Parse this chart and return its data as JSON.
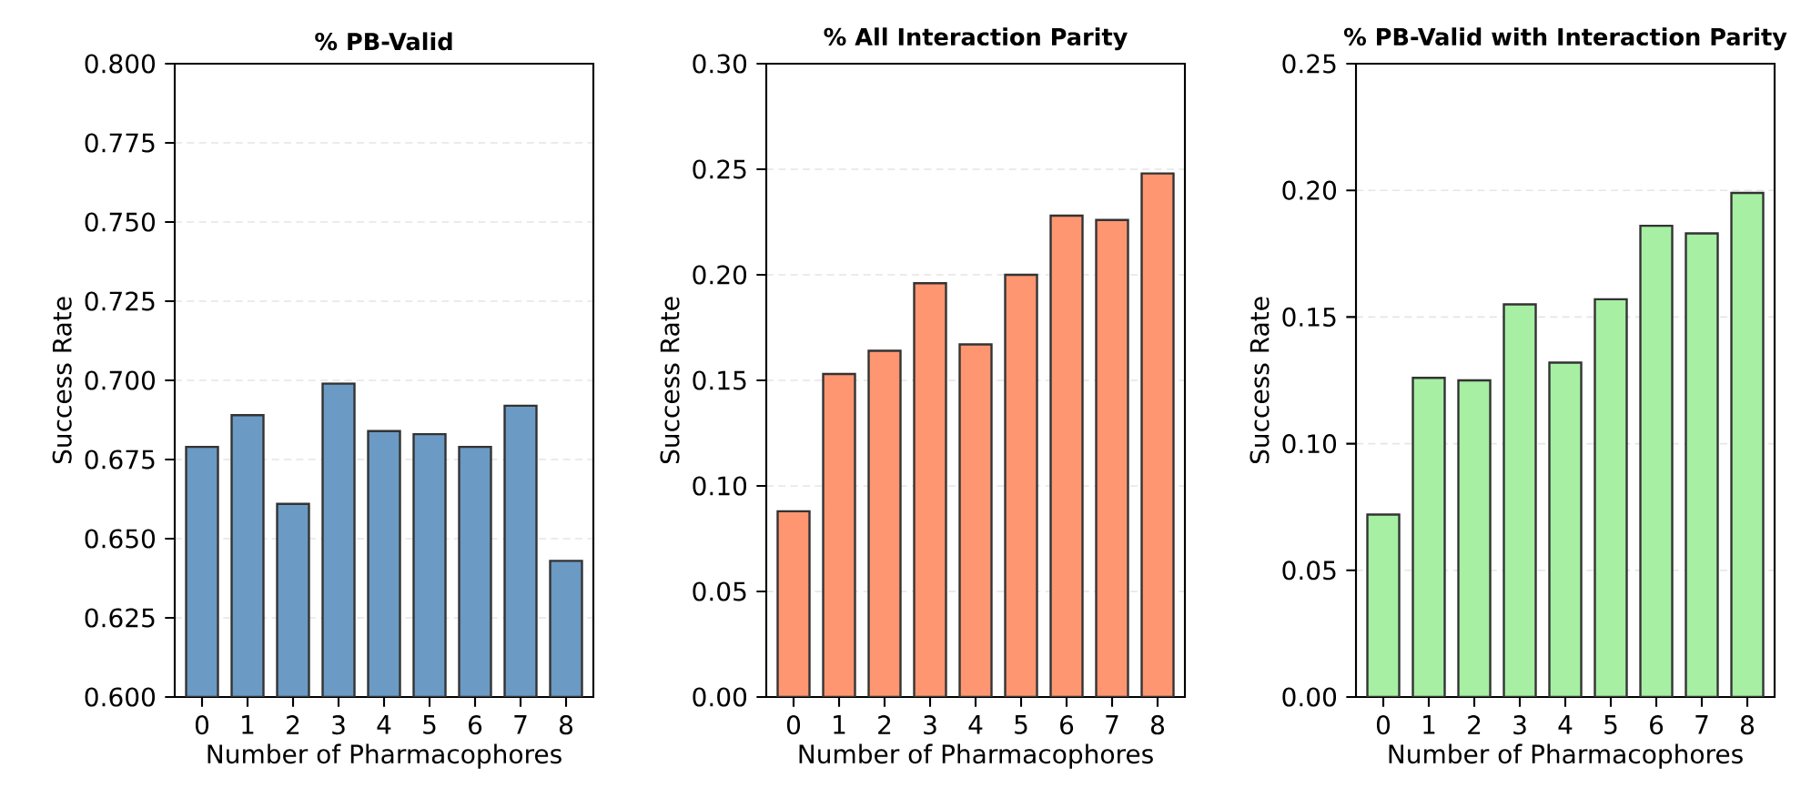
{
  "chart_data": [
    {
      "type": "bar",
      "title": "% PB-Valid",
      "xlabel": "Number of Pharmacophores",
      "ylabel": "Success Rate",
      "categories": [
        "0",
        "1",
        "2",
        "3",
        "4",
        "5",
        "6",
        "7",
        "8"
      ],
      "values": [
        0.679,
        0.689,
        0.661,
        0.699,
        0.684,
        0.683,
        0.679,
        0.692,
        0.643
      ],
      "color": "#6b9ac4",
      "ylim": [
        0.6,
        0.8
      ],
      "yticks": [
        {
          "value": 0.6,
          "label": "0.600"
        },
        {
          "value": 0.625,
          "label": "0.625"
        },
        {
          "value": 0.65,
          "label": "0.650"
        },
        {
          "value": 0.675,
          "label": "0.675"
        },
        {
          "value": 0.7,
          "label": "0.700"
        },
        {
          "value": 0.725,
          "label": "0.725"
        },
        {
          "value": 0.75,
          "label": "0.750"
        },
        {
          "value": 0.775,
          "label": "0.775"
        },
        {
          "value": 0.8,
          "label": "0.800"
        }
      ],
      "grid": "y"
    },
    {
      "type": "bar",
      "title": "% All Interaction Parity",
      "xlabel": "Number of Pharmacophores",
      "ylabel": "Success Rate",
      "categories": [
        "0",
        "1",
        "2",
        "3",
        "4",
        "5",
        "6",
        "7",
        "8"
      ],
      "values": [
        0.088,
        0.153,
        0.164,
        0.196,
        0.167,
        0.2,
        0.228,
        0.226,
        0.248
      ],
      "color": "#fe9671",
      "ylim": [
        0,
        0.3
      ],
      "yticks": [
        {
          "value": 0,
          "label": "0.00"
        },
        {
          "value": 0.05,
          "label": "0.05"
        },
        {
          "value": 0.1,
          "label": "0.10"
        },
        {
          "value": 0.15,
          "label": "0.15"
        },
        {
          "value": 0.2,
          "label": "0.20"
        },
        {
          "value": 0.25,
          "label": "0.25"
        },
        {
          "value": 0.3,
          "label": "0.30"
        }
      ],
      "grid": "y"
    },
    {
      "type": "bar",
      "title": "% PB-Valid with Interaction Parity",
      "xlabel": "Number of Pharmacophores",
      "ylabel": "Success Rate",
      "categories": [
        "0",
        "1",
        "2",
        "3",
        "4",
        "5",
        "6",
        "7",
        "8"
      ],
      "values": [
        0.072,
        0.126,
        0.125,
        0.155,
        0.132,
        0.157,
        0.186,
        0.183,
        0.199
      ],
      "color": "#a6efa3",
      "ylim": [
        0,
        0.25
      ],
      "yticks": [
        {
          "value": 0,
          "label": "0.00"
        },
        {
          "value": 0.05,
          "label": "0.05"
        },
        {
          "value": 0.1,
          "label": "0.10"
        },
        {
          "value": 0.15,
          "label": "0.15"
        },
        {
          "value": 0.2,
          "label": "0.20"
        },
        {
          "value": 0.25,
          "label": "0.25"
        }
      ],
      "grid": "y"
    }
  ]
}
